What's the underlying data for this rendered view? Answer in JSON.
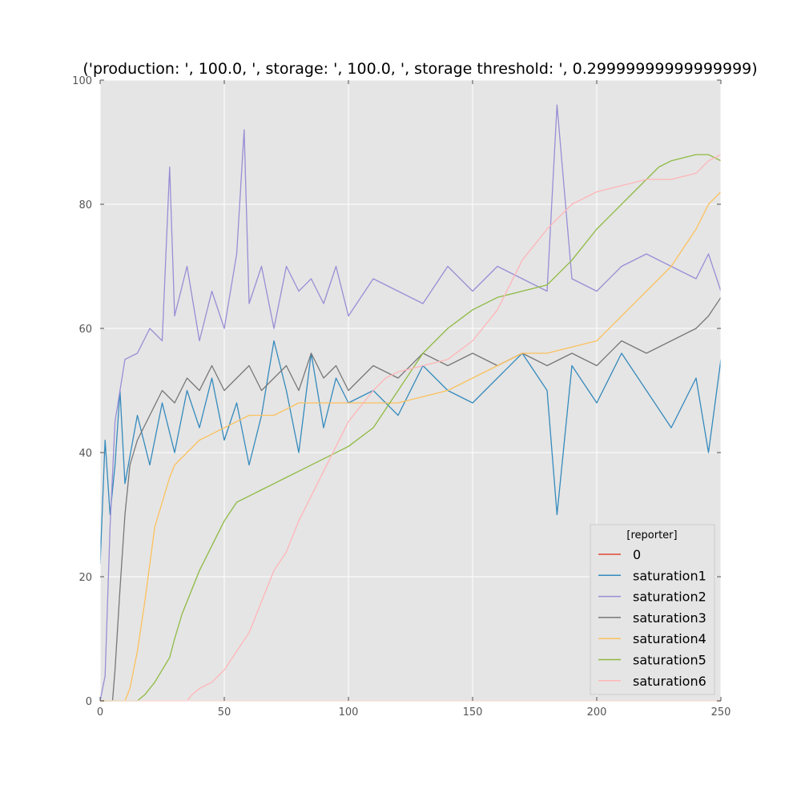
{
  "chart_data": {
    "type": "line",
    "title": "('production: ', 100.0, ', storage: ', 100.0, ', storage threshold: ', 0.29999999999999999)",
    "xlabel": "",
    "ylabel": "",
    "xlim": [
      0,
      250
    ],
    "ylim": [
      0,
      100
    ],
    "xticks": [
      0,
      50,
      100,
      150,
      200,
      250
    ],
    "yticks": [
      0,
      20,
      40,
      60,
      80,
      100
    ],
    "grid": true,
    "legend": {
      "title": "[reporter]",
      "position": "lower-right"
    },
    "series": [
      {
        "name": "0",
        "color": "#e24a33",
        "x": [
          0,
          250
        ],
        "y": [
          0,
          0
        ]
      },
      {
        "name": "saturation1",
        "color": "#348abd",
        "x": [
          0,
          2,
          4,
          6,
          8,
          10,
          15,
          20,
          25,
          30,
          35,
          40,
          45,
          50,
          55,
          60,
          65,
          70,
          75,
          80,
          85,
          90,
          95,
          100,
          110,
          120,
          130,
          140,
          150,
          160,
          170,
          180,
          184,
          190,
          200,
          210,
          220,
          230,
          240,
          245,
          250
        ],
        "y": [
          22,
          42,
          30,
          38,
          50,
          35,
          46,
          38,
          48,
          40,
          50,
          44,
          52,
          42,
          48,
          38,
          46,
          58,
          50,
          40,
          56,
          44,
          52,
          48,
          50,
          46,
          54,
          50,
          48,
          52,
          56,
          50,
          30,
          54,
          48,
          56,
          50,
          44,
          52,
          40,
          55
        ]
      },
      {
        "name": "saturation2",
        "color": "#988ed5",
        "x": [
          0,
          2,
          4,
          6,
          8,
          10,
          15,
          20,
          25,
          28,
          30,
          35,
          40,
          45,
          50,
          55,
          58,
          60,
          65,
          70,
          75,
          80,
          85,
          90,
          95,
          100,
          110,
          120,
          130,
          140,
          150,
          160,
          170,
          180,
          184,
          190,
          200,
          210,
          220,
          230,
          240,
          245,
          250
        ],
        "y": [
          0,
          4,
          28,
          45,
          50,
          55,
          56,
          60,
          58,
          86,
          62,
          70,
          58,
          66,
          60,
          72,
          92,
          64,
          70,
          60,
          70,
          66,
          68,
          64,
          70,
          62,
          68,
          66,
          64,
          70,
          66,
          70,
          68,
          66,
          96,
          68,
          66,
          70,
          72,
          70,
          68,
          72,
          66
        ]
      },
      {
        "name": "saturation3",
        "color": "#777777",
        "x": [
          0,
          5,
          6,
          8,
          10,
          12,
          15,
          20,
          25,
          30,
          35,
          40,
          45,
          50,
          55,
          60,
          65,
          70,
          75,
          80,
          85,
          90,
          95,
          100,
          110,
          120,
          130,
          140,
          150,
          160,
          170,
          180,
          190,
          200,
          210,
          220,
          230,
          240,
          245,
          250
        ],
        "y": [
          0,
          0,
          5,
          18,
          30,
          38,
          42,
          46,
          50,
          48,
          52,
          50,
          54,
          50,
          52,
          54,
          50,
          52,
          54,
          50,
          56,
          52,
          54,
          50,
          54,
          52,
          56,
          54,
          56,
          54,
          56,
          54,
          56,
          54,
          58,
          56,
          58,
          60,
          62,
          65
        ]
      },
      {
        "name": "saturation4",
        "color": "#fbc15e",
        "x": [
          0,
          10,
          12,
          15,
          18,
          20,
          22,
          25,
          28,
          30,
          35,
          40,
          45,
          50,
          55,
          60,
          65,
          70,
          75,
          80,
          90,
          100,
          110,
          120,
          130,
          140,
          150,
          160,
          170,
          180,
          190,
          200,
          210,
          220,
          230,
          240,
          245,
          250
        ],
        "y": [
          0,
          0,
          2,
          8,
          16,
          22,
          28,
          32,
          36,
          38,
          40,
          42,
          43,
          44,
          45,
          46,
          46,
          46,
          47,
          48,
          48,
          48,
          48,
          48,
          49,
          50,
          52,
          54,
          56,
          56,
          57,
          58,
          62,
          66,
          70,
          76,
          80,
          82
        ]
      },
      {
        "name": "saturation5",
        "color": "#8eba42",
        "x": [
          0,
          15,
          18,
          20,
          22,
          25,
          28,
          30,
          33,
          35,
          38,
          40,
          45,
          50,
          55,
          60,
          65,
          70,
          75,
          80,
          90,
          100,
          110,
          120,
          130,
          140,
          150,
          160,
          170,
          180,
          190,
          200,
          210,
          220,
          225,
          230,
          240,
          245,
          250
        ],
        "y": [
          0,
          0,
          1,
          2,
          3,
          5,
          7,
          10,
          14,
          16,
          19,
          21,
          25,
          29,
          32,
          33,
          34,
          35,
          36,
          37,
          39,
          41,
          44,
          50,
          56,
          60,
          63,
          65,
          66,
          67,
          71,
          76,
          80,
          84,
          86,
          87,
          88,
          88,
          87
        ]
      },
      {
        "name": "saturation6",
        "color": "#ffb5b8",
        "x": [
          0,
          35,
          37,
          40,
          45,
          50,
          55,
          60,
          62,
          65,
          68,
          70,
          75,
          78,
          80,
          85,
          90,
          95,
          100,
          110,
          115,
          120,
          130,
          140,
          150,
          160,
          165,
          170,
          180,
          185,
          190,
          200,
          210,
          220,
          230,
          240,
          245,
          250
        ],
        "y": [
          0,
          0,
          1,
          2,
          3,
          5,
          8,
          11,
          13,
          16,
          19,
          21,
          24,
          27,
          29,
          33,
          37,
          41,
          45,
          50,
          52,
          53,
          54,
          55,
          58,
          63,
          67,
          71,
          76,
          78,
          80,
          82,
          83,
          84,
          84,
          85,
          87,
          88
        ]
      }
    ]
  }
}
